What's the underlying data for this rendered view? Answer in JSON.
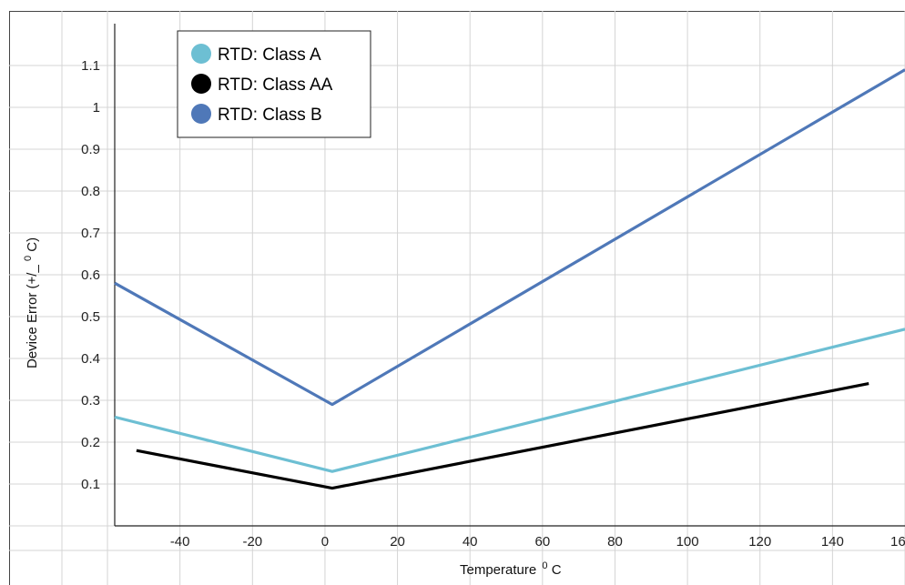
{
  "chart_data": {
    "type": "line",
    "xlabel": "Temperature",
    "xlabel_sup": "0",
    "xlabel_unit": "C",
    "ylabel": "Device Error (+/_",
    "ylabel_sup": "0",
    "ylabel_unit": "C)",
    "xlim": [
      -58,
      160
    ],
    "ylim": [
      0.0,
      1.2
    ],
    "x_ticks": [
      -40,
      -20,
      0,
      20,
      40,
      60,
      80,
      100,
      120,
      140
    ],
    "x_tick_labels": [
      "-40",
      "-20",
      "0",
      "20",
      "40",
      "60",
      "80",
      "100",
      "120",
      "140"
    ],
    "x_tick_partial": "16",
    "y_ticks": [
      0.1,
      0.2,
      0.3,
      0.4,
      0.5,
      0.6,
      0.7,
      0.8,
      0.9,
      1.0,
      1.1
    ],
    "y_tick_labels": [
      "0.1",
      "0.2",
      "0.3",
      "0.4",
      "0.5",
      "0.6",
      "0.7",
      "0.8",
      "0.9",
      "1",
      "1.1"
    ],
    "grid": true,
    "legend_position": "top-left",
    "series": [
      {
        "name": "RTD: Class A",
        "color": "#6dbfd3",
        "x": [
          -58,
          2,
          160
        ],
        "y": [
          0.26,
          0.13,
          0.47
        ]
      },
      {
        "name": "RTD: Class AA",
        "color": "#000000",
        "x": [
          -52,
          2,
          150
        ],
        "y": [
          0.18,
          0.09,
          0.34
        ]
      },
      {
        "name": "RTD: Class B",
        "color": "#4f78b8",
        "x": [
          -58,
          2,
          160
        ],
        "y": [
          0.58,
          0.29,
          1.09
        ]
      }
    ]
  }
}
